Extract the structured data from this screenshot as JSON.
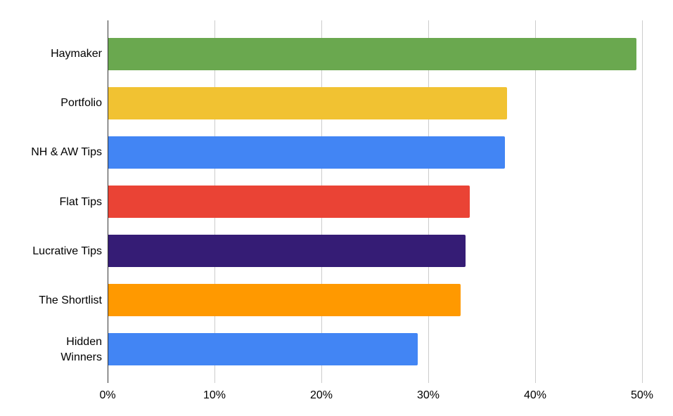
{
  "chart_data": {
    "type": "bar",
    "orientation": "horizontal",
    "title": "",
    "xlabel": "",
    "ylabel": "",
    "categories": [
      "Haymaker",
      "Portfolio",
      "NH & AW Tips",
      "Flat Tips",
      "Lucrative Tips",
      "The Shortlist",
      "Hidden Winners"
    ],
    "values": [
      49.5,
      37.4,
      37.2,
      33.9,
      33.5,
      33.0,
      29.0
    ],
    "colors": [
      "#6aa84f",
      "#f1c232",
      "#4285f4",
      "#ea4335",
      "#351c75",
      "#ff9900",
      "#4285f4"
    ],
    "xlim": [
      0,
      50
    ],
    "x_ticks": [
      "0%",
      "10%",
      "20%",
      "30%",
      "40%",
      "50%"
    ],
    "grid": true,
    "legend": "none"
  },
  "labels": {
    "categories": [
      "Haymaker",
      "Portfolio",
      "NH & AW Tips",
      "Flat Tips",
      "Lucrative Tips",
      "The Shortlist",
      "Hidden\nWinners"
    ],
    "ticks": [
      "0%",
      "10%",
      "20%",
      "30%",
      "40%",
      "50%"
    ]
  }
}
